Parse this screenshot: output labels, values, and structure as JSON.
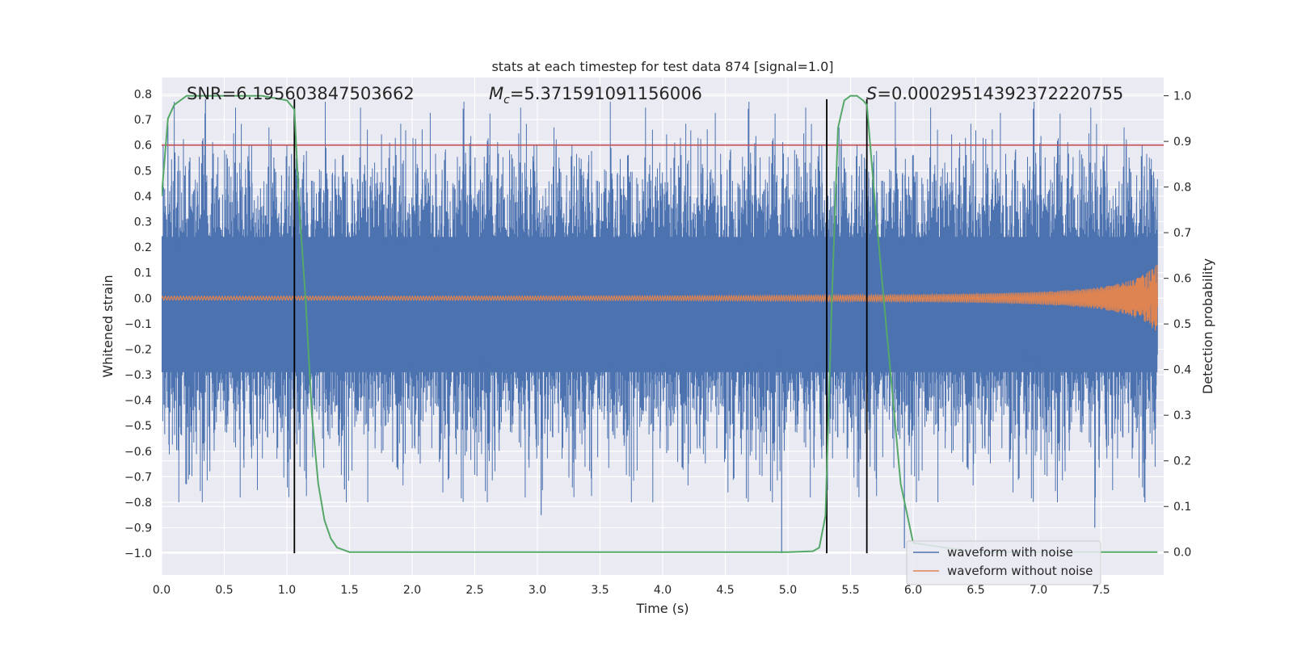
{
  "chart_data": {
    "type": "line",
    "title": "stats at each timestep for test data 874 [signal=1.0]",
    "xlabel": "Time (s)",
    "ylabel": "Whitened strain",
    "y2label": "Detection probability",
    "xlim": [
      0.0,
      8.0
    ],
    "ylim": [
      -1.085,
      0.865
    ],
    "y2lim": [
      -0.05,
      1.04
    ],
    "xticks": [
      0.0,
      0.5,
      1.0,
      1.5,
      2.0,
      2.5,
      3.0,
      3.5,
      4.0,
      4.5,
      5.0,
      5.5,
      6.0,
      6.5,
      7.0,
      7.5
    ],
    "xtick_labels": [
      "0.0",
      "0.5",
      "1.0",
      "1.5",
      "2.0",
      "2.5",
      "3.0",
      "3.5",
      "4.0",
      "4.5",
      "5.0",
      "5.5",
      "6.0",
      "6.5",
      "7.0",
      "7.5"
    ],
    "yticks": [
      0.8,
      0.7,
      0.6,
      0.5,
      0.4,
      0.3,
      0.2,
      0.1,
      0.0,
      -0.1,
      -0.2,
      -0.3,
      -0.4,
      -0.5,
      -0.6,
      -0.7,
      -0.8,
      -0.9,
      -1.0
    ],
    "ytick_labels": [
      "0.8",
      "0.7",
      "0.6",
      "0.5",
      "0.4",
      "0.3",
      "0.2",
      "0.1",
      "0.0",
      "−0.1",
      "−0.2",
      "−0.3",
      "−0.4",
      "−0.5",
      "−0.6",
      "−0.7",
      "−0.8",
      "−0.9",
      "−1.0"
    ],
    "y2ticks": [
      1.0,
      0.9,
      0.8,
      0.7,
      0.6,
      0.5,
      0.4,
      0.3,
      0.2,
      0.1,
      0.0
    ],
    "y2tick_labels": [
      "1.0",
      "0.9",
      "0.8",
      "0.7",
      "0.6",
      "0.5",
      "0.4",
      "0.3",
      "0.2",
      "0.1",
      "0.0"
    ],
    "annotations": {
      "snr": "SNR=6.195603847503662",
      "mc_symbol": "M",
      "mc_subscript": "c",
      "mc_value": "=5.371591091156006",
      "s_symbol": "S",
      "s_value": "=0.00029514392372220755"
    },
    "threshold": {
      "value": 0.6,
      "color": "#c44e52"
    },
    "vertical_lines": [
      1.06,
      5.31,
      5.63
    ],
    "vertical_line_range": [
      -1.0,
      0.78
    ],
    "series": [
      {
        "name": "waveform with noise",
        "color": "#4c72b0",
        "kind": "noise",
        "t_end": 7.95,
        "typical_amplitude": 0.45,
        "max": 0.77,
        "min": -1.0,
        "dense_band": [
          -0.29,
          0.24
        ]
      },
      {
        "name": "waveform without noise",
        "color": "#dd8452",
        "kind": "chirp",
        "t_end": 7.95,
        "amplitude_start": 0.006,
        "amplitude_end": 0.15,
        "flat_after": 7.95
      },
      {
        "name": "detection probability",
        "color": "#55a868",
        "axis": "right",
        "t": [
          0.0,
          0.05,
          0.1,
          0.2,
          0.3,
          0.5,
          0.8,
          1.0,
          1.06,
          1.1,
          1.15,
          1.2,
          1.25,
          1.3,
          1.35,
          1.4,
          1.5,
          2.0,
          3.0,
          3.5,
          4.0,
          4.5,
          5.0,
          5.2,
          5.25,
          5.3,
          5.35,
          5.4,
          5.45,
          5.5,
          5.55,
          5.6,
          5.63,
          5.7,
          5.8,
          5.9,
          6.0,
          6.5,
          7.0,
          7.5,
          7.95
        ],
        "p": [
          0.78,
          0.95,
          0.98,
          1.0,
          1.0,
          1.0,
          1.0,
          0.99,
          0.97,
          0.75,
          0.55,
          0.3,
          0.15,
          0.07,
          0.03,
          0.01,
          0.0,
          0.0,
          0.0,
          0.0,
          0.0,
          0.0,
          0.0,
          0.002,
          0.01,
          0.08,
          0.55,
          0.93,
          0.99,
          1.0,
          1.0,
          0.99,
          0.98,
          0.75,
          0.45,
          0.15,
          0.02,
          0.0,
          0.0,
          0.0,
          0.0
        ]
      }
    ],
    "legend": {
      "position": "lower-right",
      "entries": [
        "waveform with noise",
        "waveform without noise"
      ]
    },
    "grid": true
  }
}
